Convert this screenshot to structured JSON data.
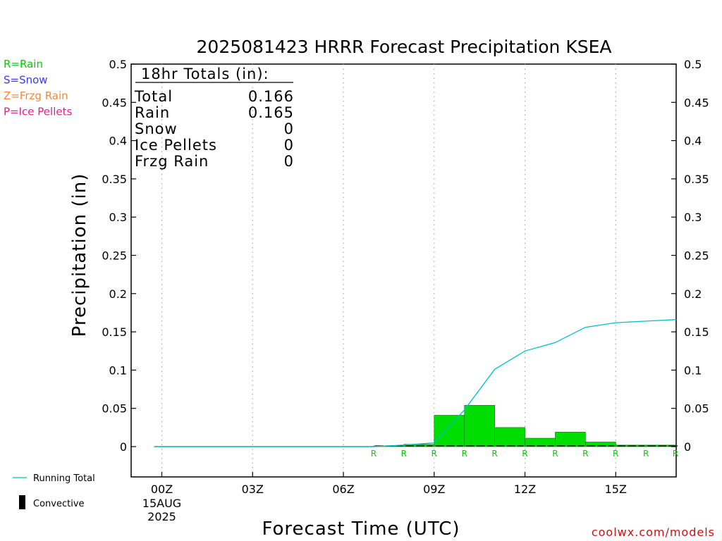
{
  "chart_data": {
    "type": "bar",
    "title": "2025081423 HRRR Forecast Precipitation KSEA",
    "xlabel": "Forecast Time (UTC)",
    "ylabel": "Precipitation (in)",
    "ylim": [
      0,
      0.5
    ],
    "y_ticks": [
      "0",
      "0.05",
      "0.1",
      "0.15",
      "0.2",
      "0.25",
      "0.3",
      "0.35",
      "0.4",
      "0.45",
      "0.5"
    ],
    "x_ticks": [
      {
        "hour": 0,
        "label": "00Z",
        "sub1": "15AUG",
        "sub2": "2025"
      },
      {
        "hour": 3,
        "label": "03Z"
      },
      {
        "hour": 6,
        "label": "06Z"
      },
      {
        "hour": 9,
        "label": "09Z"
      },
      {
        "hour": 12,
        "label": "12Z"
      },
      {
        "hour": 15,
        "label": "15Z"
      }
    ],
    "grid": "vertical dotted",
    "bars": {
      "name": "Rain",
      "color": "#00dd00",
      "hours_end": [
        8,
        9,
        10,
        11,
        12,
        13,
        14,
        15,
        16,
        17,
        18
      ],
      "values": [
        0.001,
        0.003,
        0.041,
        0.054,
        0.025,
        0.011,
        0.019,
        0.006,
        0.002,
        0.002,
        0.002
      ]
    },
    "running_total": {
      "name": "Running Total",
      "color": "#00c0c8",
      "hours": [
        -0.25,
        3,
        6,
        7,
        8,
        9,
        10,
        11,
        12,
        13,
        14,
        15,
        16,
        17
      ],
      "values": [
        0,
        0,
        0,
        0,
        0.002,
        0.005,
        0.048,
        0.101,
        0.125,
        0.136,
        0.156,
        0.162,
        0.164,
        0.166
      ]
    },
    "ptype_markers": {
      "label": "R",
      "hours": [
        8,
        9,
        10,
        11,
        12,
        13,
        14,
        15,
        16,
        17
      ]
    },
    "legend": {
      "placement": "left",
      "types": [
        {
          "text": "R=Rain",
          "color": "#00d000"
        },
        {
          "text": "S=Snow",
          "color": "#3a3aff"
        },
        {
          "text": "Z=Frzg Rain",
          "color": "#f08a3a"
        },
        {
          "text": "P=Ice Pellets",
          "color": "#e0208a"
        }
      ],
      "running_total_label": "Running Total",
      "convective_label": "Convective"
    },
    "totals": {
      "header": "18hr Totals (in):",
      "rows": [
        {
          "label": "Total",
          "value": "0.166"
        },
        {
          "label": "Rain",
          "value": "0.165"
        },
        {
          "label": "Snow",
          "value": "0"
        },
        {
          "label": "Ice Pellets",
          "value": "0"
        },
        {
          "label": "Frzg Rain",
          "value": "0"
        }
      ]
    },
    "credit": "coolwx.com/models"
  }
}
